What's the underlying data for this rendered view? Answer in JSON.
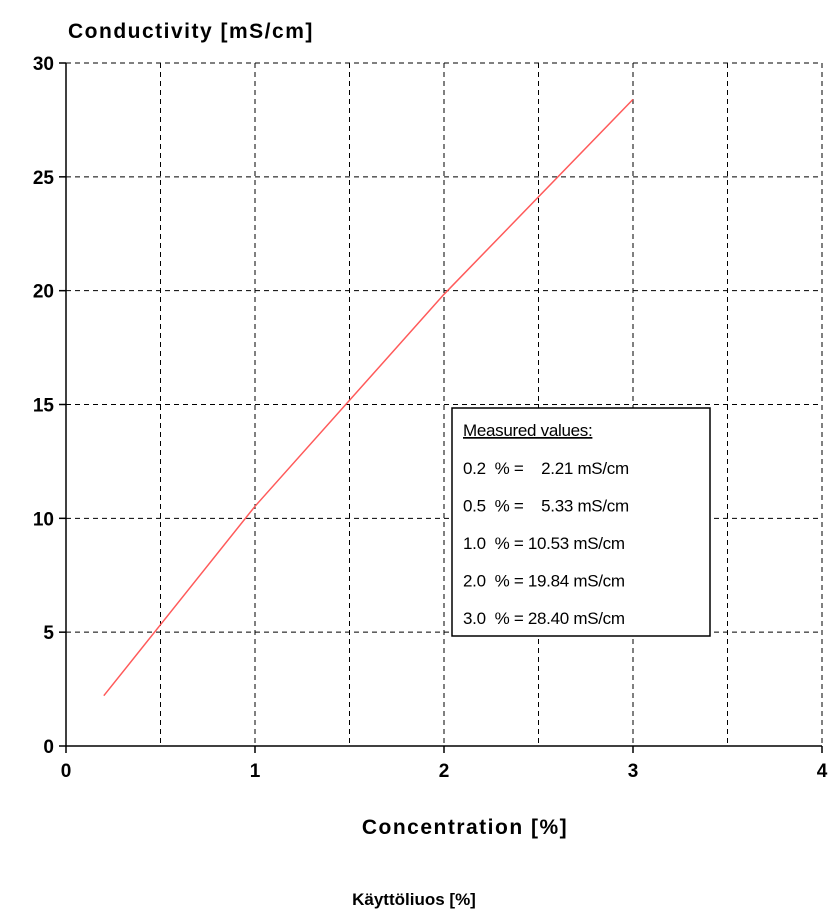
{
  "chart_data": {
    "type": "line",
    "ylabel": "Conductivity [mS/cm]",
    "xlabel": "Concentration [%]",
    "xlim": [
      0,
      4
    ],
    "ylim": [
      0,
      30
    ],
    "x_ticks": [
      0,
      1,
      2,
      3,
      4
    ],
    "y_ticks": [
      0,
      5,
      10,
      15,
      20,
      25,
      30
    ],
    "grid": true,
    "series": [
      {
        "color": "#ff5a5a",
        "x": [
          0.2,
          0.5,
          1.0,
          2.0,
          3.0
        ],
        "y": [
          2.21,
          5.33,
          10.53,
          19.84,
          28.4
        ]
      }
    ],
    "legend_box": {
      "title": "Measured values:",
      "lines": [
        "0.2  % =    2.21 mS/cm",
        "0.5  % =    5.33 mS/cm",
        "1.0  % = 10.53 mS/cm",
        "2.0  % = 19.84 mS/cm",
        "3.0  % = 28.40 mS/cm"
      ]
    }
  },
  "footer_label": "Käyttöliuos [%]"
}
